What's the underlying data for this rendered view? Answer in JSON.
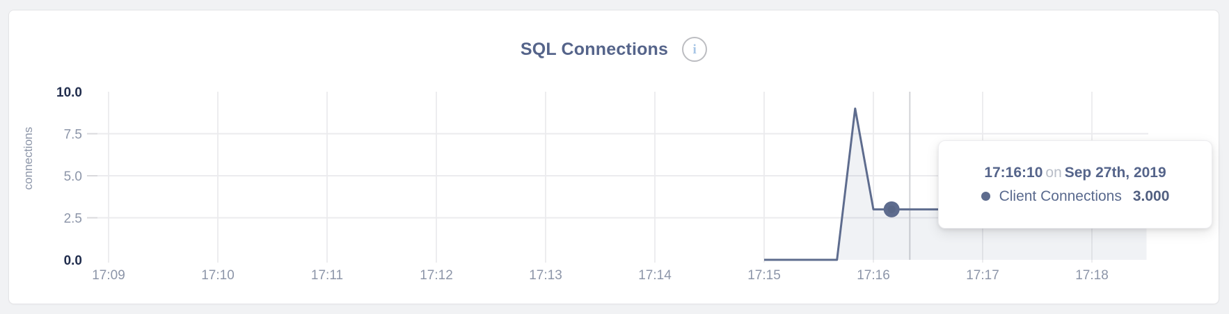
{
  "header": {
    "title": "SQL Connections",
    "info_glyph": "i"
  },
  "colors": {
    "series": "#5e6c8e",
    "series_fill": "rgba(94,108,142,0.09)",
    "grid": "#ebebee",
    "tick_stub": "#d9d9dc",
    "crosshair": "#d2d3d7",
    "label": "#8c95a8",
    "label_strong": "#222e4e"
  },
  "chart_data": {
    "type": "area",
    "title": "SQL Connections",
    "xlabel": "",
    "ylabel": "connections",
    "ylim": [
      0,
      10
    ],
    "grid": true,
    "yticks": [
      {
        "value": 0,
        "label": "0.0",
        "emphasized": true
      },
      {
        "value": 2.5,
        "label": "2.5",
        "emphasized": false
      },
      {
        "value": 5,
        "label": "5.0",
        "emphasized": false
      },
      {
        "value": 7.5,
        "label": "7.5",
        "emphasized": false
      },
      {
        "value": 10,
        "label": "10.0",
        "emphasized": true
      }
    ],
    "xticks": [
      "17:09",
      "17:10",
      "17:11",
      "17:12",
      "17:13",
      "17:14",
      "17:15",
      "17:16",
      "17:17",
      "17:18"
    ],
    "series": [
      {
        "name": "Client Connections",
        "points": [
          {
            "t": "17:15:00",
            "v": 0
          },
          {
            "t": "17:15:10",
            "v": 0
          },
          {
            "t": "17:15:20",
            "v": 0
          },
          {
            "t": "17:15:30",
            "v": 0
          },
          {
            "t": "17:15:40",
            "v": 0
          },
          {
            "t": "17:15:50",
            "v": 9
          },
          {
            "t": "17:16:00",
            "v": 3
          },
          {
            "t": "17:16:10",
            "v": 3
          },
          {
            "t": "17:16:20",
            "v": 3
          },
          {
            "t": "17:16:30",
            "v": 3
          },
          {
            "t": "17:16:40",
            "v": 3
          },
          {
            "t": "17:16:50",
            "v": 3
          },
          {
            "t": "17:17:00",
            "v": 3
          },
          {
            "t": "17:17:10",
            "v": 3
          },
          {
            "t": "17:17:20",
            "v": 3
          },
          {
            "t": "17:17:30",
            "v": 3
          },
          {
            "t": "17:17:40",
            "v": 3
          },
          {
            "t": "17:17:50",
            "v": 3
          },
          {
            "t": "17:18:00",
            "v": 3
          },
          {
            "t": "17:18:10",
            "v": 3
          },
          {
            "t": "17:18:20",
            "v": 3
          },
          {
            "t": "17:18:30",
            "v": 3
          }
        ]
      }
    ],
    "highlight_point": {
      "t": "17:16:10",
      "v": 3
    },
    "crosshair_time": "17:16:20",
    "legend_position": "none"
  },
  "tooltip": {
    "time": "17:16:10",
    "connector": "on",
    "date": "Sep 27th, 2019",
    "series_name": "Client Connections",
    "value": "3.000"
  }
}
